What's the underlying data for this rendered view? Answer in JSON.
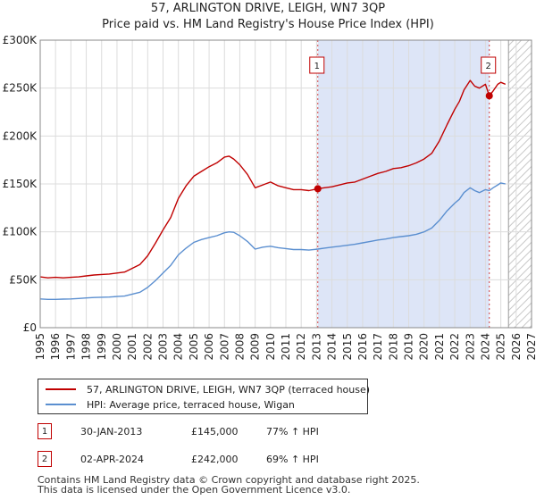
{
  "title_line1": "57, ARLINGTON DRIVE, LEIGH, WN7 3QP",
  "title_line2": "Price paid vs. HM Land Registry's House Price Index (HPI)",
  "chart_data": {
    "type": "line",
    "title": "Price paid vs. HM Land Registry's House Price Index (HPI)",
    "xlabel": "",
    "ylabel": "",
    "xlim": [
      1995,
      2027
    ],
    "ylim": [
      0,
      300000
    ],
    "x_ticks": [
      "1995",
      "1996",
      "1997",
      "1998",
      "1999",
      "2000",
      "2001",
      "2002",
      "2003",
      "2004",
      "2005",
      "2006",
      "2007",
      "2008",
      "2009",
      "2010",
      "2011",
      "2012",
      "2013",
      "2014",
      "2015",
      "2016",
      "2017",
      "2018",
      "2019",
      "2020",
      "2021",
      "2022",
      "2023",
      "2024",
      "2025",
      "2026",
      "2027"
    ],
    "y_ticks": [
      {
        "value": 0,
        "label": "£0"
      },
      {
        "value": 50000,
        "label": "£50K"
      },
      {
        "value": 100000,
        "label": "£100K"
      },
      {
        "value": 150000,
        "label": "£150K"
      },
      {
        "value": 200000,
        "label": "£200K"
      },
      {
        "value": 250000,
        "label": "£250K"
      },
      {
        "value": 300000,
        "label": "£300K"
      }
    ],
    "grid": true,
    "shaded_region": {
      "from": 2013.08,
      "to": 2024.25,
      "color": "#dde5f7"
    },
    "future_hatch_from": 2025.5,
    "series": [
      {
        "name": "57, ARLINGTON DRIVE, LEIGH, WN7 3QP (terraced house)",
        "color": "#c00000",
        "x": [
          1995,
          1995.5,
          1996,
          1996.5,
          1997,
          1997.5,
          1998,
          1998.5,
          1999,
          1999.5,
          2000,
          2000.5,
          2001,
          2001.5,
          2002,
          2002.5,
          2003,
          2003.5,
          2004,
          2004.5,
          2005,
          2005.5,
          2006,
          2006.5,
          2007,
          2007.3,
          2007.6,
          2008,
          2008.5,
          2009,
          2009.5,
          2010,
          2010.5,
          2011,
          2011.5,
          2012,
          2012.5,
          2013.08,
          2013.5,
          2014,
          2014.5,
          2015,
          2015.5,
          2016,
          2016.5,
          2017,
          2017.5,
          2018,
          2018.5,
          2019,
          2019.5,
          2020,
          2020.5,
          2021,
          2021.5,
          2022,
          2022.3,
          2022.6,
          2023,
          2023.3,
          2023.6,
          2024,
          2024.25,
          2024.5,
          2024.8,
          2025,
          2025.3
        ],
        "values": [
          53000,
          52000,
          52500,
          52000,
          52500,
          53000,
          54000,
          55000,
          55500,
          56000,
          57000,
          58000,
          62000,
          66000,
          75000,
          88000,
          102000,
          115000,
          135000,
          148000,
          158000,
          163000,
          168000,
          172000,
          178000,
          179000,
          176000,
          170000,
          160000,
          146000,
          149000,
          152000,
          148000,
          146000,
          144000,
          144000,
          143000,
          145000,
          146000,
          147000,
          149000,
          151000,
          152000,
          155000,
          158000,
          161000,
          163000,
          166000,
          167000,
          169000,
          172000,
          176000,
          182000,
          195000,
          212000,
          228000,
          236000,
          248000,
          258000,
          252000,
          250000,
          254000,
          242000,
          247000,
          254000,
          256000,
          254000
        ]
      },
      {
        "name": "HPI: Average price, terraced house, Wigan",
        "color": "#5b8fd0",
        "x": [
          1995,
          1995.5,
          1996,
          1996.5,
          1997,
          1997.5,
          1998,
          1998.5,
          1999,
          1999.5,
          2000,
          2000.5,
          2001,
          2001.5,
          2002,
          2002.5,
          2003,
          2003.5,
          2004,
          2004.5,
          2005,
          2005.5,
          2006,
          2006.5,
          2007,
          2007.3,
          2007.6,
          2008,
          2008.5,
          2009,
          2009.5,
          2010,
          2010.5,
          2011,
          2011.5,
          2012,
          2012.5,
          2013.08,
          2013.5,
          2014,
          2014.5,
          2015,
          2015.5,
          2016,
          2016.5,
          2017,
          2017.5,
          2018,
          2018.5,
          2019,
          2019.5,
          2020,
          2020.5,
          2021,
          2021.5,
          2022,
          2022.3,
          2022.6,
          2023,
          2023.3,
          2023.6,
          2024,
          2024.25,
          2024.5,
          2024.8,
          2025,
          2025.3
        ],
        "values": [
          30000,
          29500,
          29500,
          29800,
          30000,
          30500,
          31000,
          31500,
          31800,
          32000,
          32500,
          33000,
          35000,
          37000,
          42000,
          49000,
          57000,
          65000,
          76000,
          83000,
          89000,
          92000,
          94000,
          96000,
          99000,
          100000,
          99500,
          96000,
          90000,
          82000,
          84000,
          85000,
          83500,
          82500,
          81500,
          81500,
          81000,
          82000,
          83000,
          84000,
          85000,
          86000,
          87000,
          88500,
          90000,
          91500,
          92500,
          94000,
          95000,
          96000,
          97500,
          100000,
          104000,
          112000,
          122000,
          130000,
          134000,
          141000,
          146000,
          143000,
          141000,
          144000,
          143000,
          146000,
          149000,
          151000,
          150000
        ]
      }
    ],
    "markers": [
      {
        "label": "1",
        "x": 2013.08,
        "y": 145000
      },
      {
        "label": "2",
        "x": 2024.25,
        "y": 242000
      }
    ]
  },
  "legend": {
    "items": [
      {
        "label": "57, ARLINGTON DRIVE, LEIGH, WN7 3QP (terraced house)",
        "color": "#c00000"
      },
      {
        "label": "HPI: Average price, terraced house, Wigan",
        "color": "#5b8fd0"
      }
    ]
  },
  "transactions": [
    {
      "badge": "1",
      "date": "30-JAN-2013",
      "price": "£145,000",
      "hpi": "77% ↑ HPI"
    },
    {
      "badge": "2",
      "date": "02-APR-2024",
      "price": "£242,000",
      "hpi": "69% ↑ HPI"
    }
  ],
  "footer": {
    "line1": "Contains HM Land Registry data © Crown copyright and database right 2025.",
    "line2": "This data is licensed under the Open Government Licence v3.0."
  }
}
